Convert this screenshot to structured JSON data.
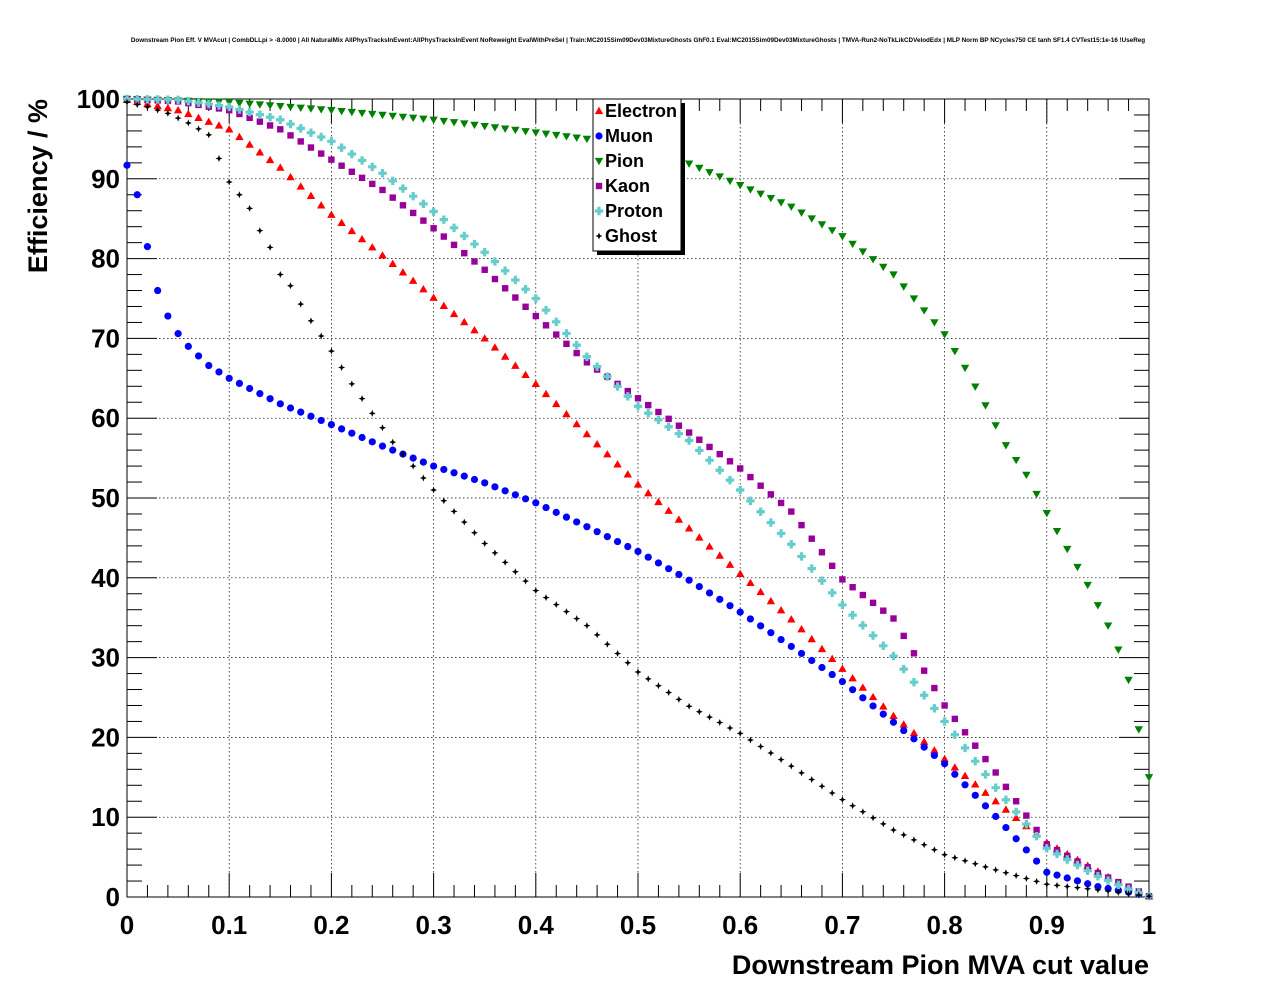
{
  "chart_data": {
    "type": "scatter",
    "title": "Downstream Pion Eff. V MVAcut | CombDLLpi > -8.0000 | All NaturalMix AllPhysTracksInEvent:AllPhysTracksInEvent NoReweight EvalWithPreSel | Train:MC2015Sim09Dev03MixtureGhosts GhF0.1 Eval:MC2015Sim09Dev03MixtureGhosts | TMVA-Run2-NoTkLikCDVelodEdx | MLP Norm BP NCycles750 CE tanh SF1.4 CVTest15:1e-16 !UseReg",
    "xlabel": "Downstream Pion MVA cut value",
    "ylabel": "Efficiency / %",
    "xlim": [
      0,
      1
    ],
    "ylim": [
      0,
      100
    ],
    "xticks": [
      "0",
      "0.1",
      "0.2",
      "0.3",
      "0.4",
      "0.5",
      "0.6",
      "0.7",
      "0.8",
      "0.9",
      "1"
    ],
    "yticks": [
      "0",
      "10",
      "20",
      "30",
      "40",
      "50",
      "60",
      "70",
      "80",
      "90",
      "100"
    ],
    "grid": true,
    "legend_position": "top-center",
    "x_step": 0.01,
    "series": [
      {
        "name": "Electron",
        "color": "#ff0000",
        "marker": "triangle-up",
        "anchors": [
          [
            0,
            99.9
          ],
          [
            0.05,
            98.6
          ],
          [
            0.1,
            96.2
          ],
          [
            0.15,
            91.4
          ],
          [
            0.2,
            85.5
          ],
          [
            0.25,
            80.4
          ],
          [
            0.3,
            75.1
          ],
          [
            0.35,
            70.0
          ],
          [
            0.4,
            64.3
          ],
          [
            0.45,
            58.0
          ],
          [
            0.5,
            51.7
          ],
          [
            0.55,
            46.2
          ],
          [
            0.6,
            40.5
          ],
          [
            0.65,
            34.8
          ],
          [
            0.7,
            28.6
          ],
          [
            0.75,
            22.7
          ],
          [
            0.8,
            17.3
          ],
          [
            0.85,
            12.0
          ],
          [
            0.9,
            6.8
          ],
          [
            0.95,
            3.2
          ],
          [
            0.98,
            1.1
          ],
          [
            1.0,
            0.1
          ]
        ]
      },
      {
        "name": "Muon",
        "color": "#0000ff",
        "marker": "circle",
        "anchors": [
          [
            0,
            91.7
          ],
          [
            0.01,
            88.0
          ],
          [
            0.02,
            81.5
          ],
          [
            0.03,
            76.0
          ],
          [
            0.04,
            72.8
          ],
          [
            0.05,
            70.6
          ],
          [
            0.06,
            69.0
          ],
          [
            0.08,
            66.6
          ],
          [
            0.1,
            65.0
          ],
          [
            0.15,
            61.8
          ],
          [
            0.2,
            59.2
          ],
          [
            0.25,
            56.5
          ],
          [
            0.3,
            54.0
          ],
          [
            0.35,
            51.9
          ],
          [
            0.4,
            49.4
          ],
          [
            0.45,
            46.4
          ],
          [
            0.5,
            43.3
          ],
          [
            0.55,
            39.7
          ],
          [
            0.6,
            35.7
          ],
          [
            0.65,
            31.4
          ],
          [
            0.7,
            27.0
          ],
          [
            0.75,
            21.9
          ],
          [
            0.8,
            16.7
          ],
          [
            0.85,
            10.1
          ],
          [
            0.9,
            3.1
          ],
          [
            0.95,
            1.3
          ],
          [
            0.98,
            0.6
          ],
          [
            1.0,
            0.1
          ]
        ]
      },
      {
        "name": "Pion",
        "color": "#008000",
        "marker": "triangle-down",
        "anchors": [
          [
            0,
            100
          ],
          [
            0.1,
            99.6
          ],
          [
            0.2,
            98.6
          ],
          [
            0.3,
            97.4
          ],
          [
            0.4,
            95.8
          ],
          [
            0.45,
            95.0
          ],
          [
            0.5,
            93.7
          ],
          [
            0.55,
            91.9
          ],
          [
            0.6,
            89.2
          ],
          [
            0.65,
            86.5
          ],
          [
            0.7,
            82.8
          ],
          [
            0.75,
            78.0
          ],
          [
            0.8,
            70.5
          ],
          [
            0.82,
            66.3
          ],
          [
            0.84,
            61.6
          ],
          [
            0.86,
            56.6
          ],
          [
            0.88,
            52.9
          ],
          [
            0.9,
            48.1
          ],
          [
            0.92,
            43.6
          ],
          [
            0.94,
            39.1
          ],
          [
            0.96,
            34.0
          ],
          [
            0.97,
            31.0
          ],
          [
            0.98,
            27.2
          ],
          [
            0.99,
            21.0
          ],
          [
            1.0,
            15.0
          ]
        ]
      },
      {
        "name": "Kaon",
        "color": "#990099",
        "marker": "square",
        "anchors": [
          [
            0,
            100
          ],
          [
            0.05,
            99.7
          ],
          [
            0.1,
            98.6
          ],
          [
            0.15,
            96.2
          ],
          [
            0.2,
            92.4
          ],
          [
            0.25,
            88.6
          ],
          [
            0.3,
            83.8
          ],
          [
            0.35,
            78.6
          ],
          [
            0.4,
            72.8
          ],
          [
            0.45,
            67.0
          ],
          [
            0.5,
            62.5
          ],
          [
            0.55,
            58.2
          ],
          [
            0.6,
            53.7
          ],
          [
            0.65,
            48.3
          ],
          [
            0.7,
            39.8
          ],
          [
            0.75,
            34.9
          ],
          [
            0.8,
            24.0
          ],
          [
            0.85,
            15.6
          ],
          [
            0.9,
            6.6
          ],
          [
            0.95,
            3.0
          ],
          [
            0.98,
            1.3
          ],
          [
            1.0,
            0.1
          ]
        ]
      },
      {
        "name": "Proton",
        "color": "#66cccc",
        "marker": "cross",
        "anchors": [
          [
            0,
            100
          ],
          [
            0.05,
            99.9
          ],
          [
            0.1,
            99.0
          ],
          [
            0.15,
            97.4
          ],
          [
            0.2,
            94.7
          ],
          [
            0.25,
            90.7
          ],
          [
            0.3,
            85.9
          ],
          [
            0.35,
            80.8
          ],
          [
            0.4,
            75.0
          ],
          [
            0.45,
            67.7
          ],
          [
            0.5,
            61.5
          ],
          [
            0.55,
            57.2
          ],
          [
            0.6,
            51.0
          ],
          [
            0.65,
            44.2
          ],
          [
            0.7,
            36.6
          ],
          [
            0.75,
            30.2
          ],
          [
            0.8,
            22.0
          ],
          [
            0.85,
            13.7
          ],
          [
            0.9,
            6.1
          ],
          [
            0.95,
            2.6
          ],
          [
            0.98,
            1.0
          ],
          [
            1.0,
            0.1
          ]
        ]
      },
      {
        "name": "Ghost",
        "color": "#000000",
        "marker": "star",
        "anchors": [
          [
            0,
            99.6
          ],
          [
            0.02,
            99.0
          ],
          [
            0.04,
            98.2
          ],
          [
            0.06,
            97.0
          ],
          [
            0.08,
            95.5
          ],
          [
            0.1,
            89.6
          ],
          [
            0.11,
            88.0
          ],
          [
            0.12,
            86.3
          ],
          [
            0.13,
            83.5
          ],
          [
            0.14,
            81.4
          ],
          [
            0.15,
            78.0
          ],
          [
            0.16,
            76.6
          ],
          [
            0.17,
            74.3
          ],
          [
            0.18,
            72.2
          ],
          [
            0.2,
            68.4
          ],
          [
            0.22,
            64.3
          ],
          [
            0.24,
            60.6
          ],
          [
            0.26,
            57.0
          ],
          [
            0.3,
            51.0
          ],
          [
            0.35,
            44.3
          ],
          [
            0.4,
            38.4
          ],
          [
            0.45,
            34.0
          ],
          [
            0.5,
            28.2
          ],
          [
            0.55,
            23.9
          ],
          [
            0.6,
            20.5
          ],
          [
            0.65,
            16.4
          ],
          [
            0.7,
            12.2
          ],
          [
            0.75,
            8.4
          ],
          [
            0.8,
            5.3
          ],
          [
            0.85,
            3.4
          ],
          [
            0.9,
            1.6
          ],
          [
            0.95,
            0.9
          ],
          [
            0.98,
            0.4
          ],
          [
            1.0,
            0.1
          ]
        ]
      }
    ]
  }
}
